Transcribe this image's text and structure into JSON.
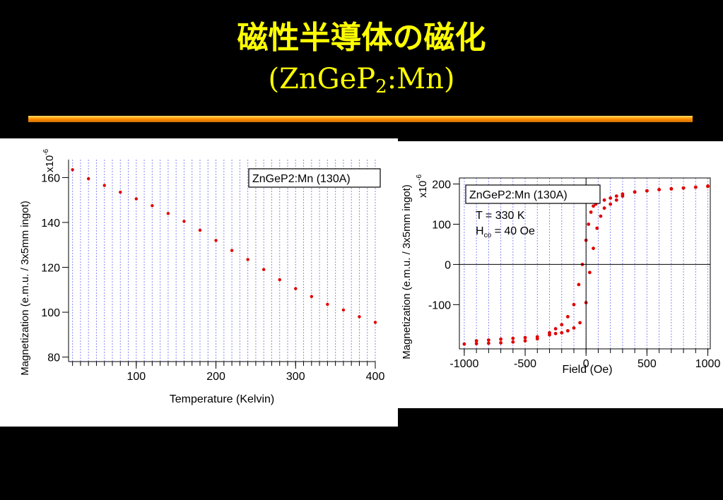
{
  "slide": {
    "title_line1": "磁性半導体の磁化",
    "title_line2_prefix": "(ZnGeP",
    "title_line2_sub": "2",
    "title_line2_suffix": ":Mn)"
  },
  "chart_data": [
    {
      "type": "scatter",
      "xlabel": "Temperature (Kelvin)",
      "ylabel": "Magnetization (e.m.u. / 3x5mm ingot)",
      "y_multiplier": "x10",
      "y_multiplier_exp": "-6",
      "legend_label": "ZnGeP2:Mn (130A)",
      "legend_position": "top-right",
      "xlim": [
        15,
        400
      ],
      "ylim": [
        78,
        168
      ],
      "xticks": [
        100,
        200,
        300,
        400
      ],
      "yticks": [
        80,
        100,
        120,
        140,
        160
      ],
      "grid": "vertical",
      "color": "#e00000",
      "x": [
        20,
        40,
        60,
        80,
        100,
        120,
        140,
        160,
        180,
        200,
        220,
        240,
        260,
        280,
        300,
        320,
        340,
        360,
        380,
        400
      ],
      "y": [
        163.5,
        159.5,
        156.5,
        153.5,
        150.5,
        147.5,
        144,
        140.5,
        136.5,
        132,
        127.5,
        123.5,
        119,
        114.5,
        110.5,
        107,
        103.5,
        101,
        98,
        95.5
      ]
    },
    {
      "type": "scatter",
      "xlabel": "Field (Oe)",
      "ylabel": "Magnetization (e.m.u. / 3x5mm ingot)",
      "y_multiplier": "x10",
      "y_multiplier_exp": "-6",
      "legend_label": "ZnGeP2:Mn (130A)",
      "legend_position": "top-left",
      "annotation_temp": "T = 330 K",
      "annotation_hc_prefix": "H",
      "annotation_hc_sub": "co",
      "annotation_hc_suffix": " = 40 Oe",
      "xlim": [
        -1040,
        1020
      ],
      "ylim": [
        -210,
        215
      ],
      "xticks": [
        -1000,
        -500,
        0,
        500,
        1000
      ],
      "yticks": [
        -100,
        0,
        100,
        200
      ],
      "grid": "vertical",
      "color": "#e00000",
      "x": [
        -1000,
        -900,
        -800,
        -700,
        -600,
        -500,
        -400,
        -300,
        -250,
        -200,
        -150,
        -100,
        -60,
        -30,
        0,
        20,
        40,
        60,
        80,
        100,
        150,
        200,
        250,
        300,
        400,
        500,
        600,
        700,
        800,
        900,
        1000,
        -900,
        -800,
        -700,
        -600,
        -500,
        -400,
        -300,
        -250,
        -200,
        -150,
        -100,
        -50,
        0,
        30,
        60,
        90,
        120,
        150,
        200,
        250,
        300,
        400,
        500,
        600,
        700,
        800,
        900,
        1000
      ],
      "y": [
        -198,
        -197,
        -196,
        -195,
        -193,
        -190,
        -185,
        -170,
        -160,
        -150,
        -130,
        -100,
        -50,
        0,
        60,
        100,
        130,
        145,
        150,
        155,
        160,
        165,
        170,
        175,
        180,
        183,
        186,
        188,
        190,
        192,
        194,
        -190,
        -188,
        -186,
        -184,
        -182,
        -180,
        -175,
        -172,
        -170,
        -165,
        -158,
        -145,
        -95,
        -20,
        40,
        90,
        120,
        140,
        150,
        160,
        170,
        180,
        183,
        186,
        188,
        190,
        192,
        195
      ]
    }
  ]
}
